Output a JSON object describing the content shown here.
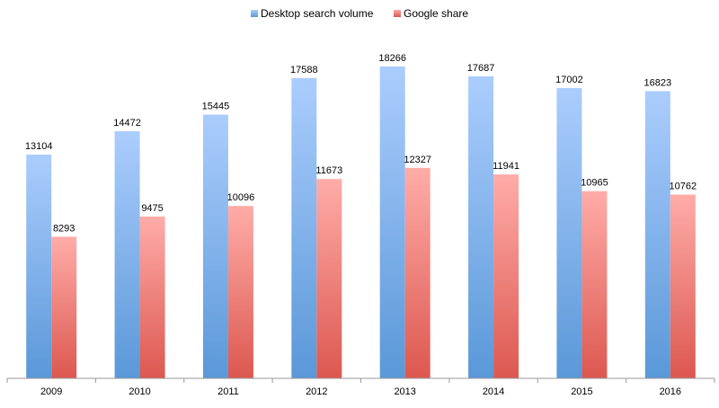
{
  "chart_data": {
    "type": "bar",
    "title": "",
    "xlabel": "",
    "ylabel": "",
    "categories": [
      "2009",
      "2010",
      "2011",
      "2012",
      "2013",
      "2014",
      "2015",
      "2016"
    ],
    "series": [
      {
        "name": "Desktop search volume",
        "values": [
          13104,
          14472,
          15445,
          17588,
          18266,
          17687,
          17002,
          16823
        ],
        "color_top": "#abcdfd",
        "color_bottom": "#5a98d8"
      },
      {
        "name": "Google share",
        "values": [
          8293,
          9475,
          10096,
          11673,
          12327,
          11941,
          10965,
          10762
        ],
        "color_top": "#ffaca8",
        "color_bottom": "#dc5850"
      }
    ],
    "ylim": [
      0,
      20000
    ],
    "grid": false,
    "legend": "top-center",
    "data_labels": true
  }
}
